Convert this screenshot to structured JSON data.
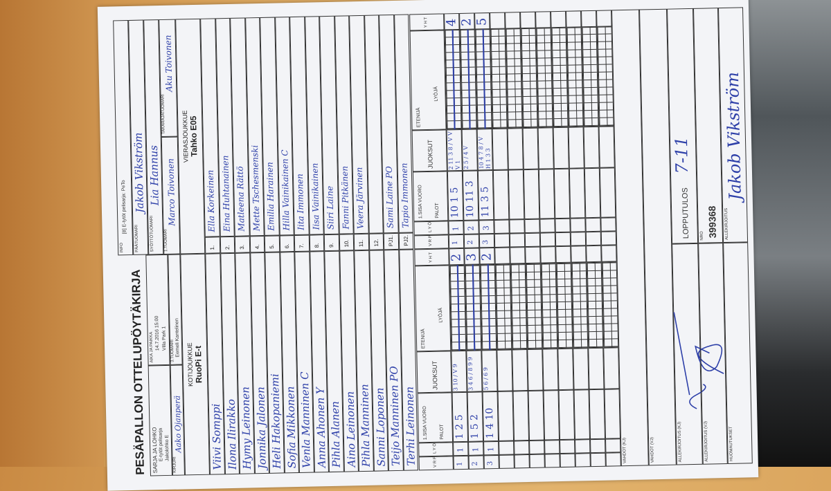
{
  "form": {
    "title": "PESÄPALLON OTTELUPÖYTÄKIRJA",
    "series_label": "SARJA JA LOHKO",
    "series_value": "E-tytöt pelisarja",
    "series_group": "Jakolohko E",
    "time_label": "AIKA JA PAIKKA",
    "time_value": "14.7.2016 15:00",
    "place_value": "Villa Park 1",
    "scorer_label": "KIRJURI",
    "scorer_value": "Aako Ojanperä",
    "third_umpire_label": "3.TUOMARI",
    "third_umpire_value": "Eemeli Kantelinen",
    "info_label": "INFO",
    "info_value": "[8] E-tytöt pelisarja: PeTo",
    "chief_umpire_label": "PÄÄTUOMARI",
    "chief_umpire_value": "Jakob Vikström",
    "pitch_umpire_label": "SYÖTTÖTUOMARI",
    "pitch_umpire_value": "Lia Hannus",
    "first_umpire_label": "1.TUOMARI",
    "first_umpire_value": "Marco Toivonen",
    "back_umpire_label": "TAKARAJATUOMARI",
    "back_umpire_value": "Aku Toivonen"
  },
  "home": {
    "label": "KOTIJOUKKUE",
    "team": "RuoPi E-t",
    "players": [
      "Viivi Somppi",
      "Ilona Ilirakko",
      "Hymy Leinonen",
      "Jonnika Jalonen",
      "Heli Hakopaniemi",
      "Sofia Mikkonen",
      "Venla Manninen  C",
      "Anna Ahonen  Y",
      "Pihla Alanen",
      "Aino Leinonen",
      "Pihla Manninen",
      "Sanni Loponen",
      "Teijo Manninen  PO",
      "Terhi Leinonen"
    ]
  },
  "away": {
    "label": "VIERASJOUKKUE",
    "team": "Tahko E05",
    "numbers": [
      "1.",
      "2.",
      "3.",
      "4.",
      "5.",
      "6.",
      "7.",
      "8.",
      "9.",
      "10.",
      "11.",
      "12.",
      "PJ1.",
      "PJ2."
    ],
    "players": [
      "Ella Korkeinen",
      "Eina Huhtanainen",
      "Matleena Rättö",
      "Mette Tschesmenski",
      "Emilia Harainen",
      "Hilla Vainikainen  C",
      "Iita Immonen",
      "Iisa Vainikainen",
      "Siiri Laine",
      "Fanni Pitkänen",
      "Veera Järvinen",
      "",
      "Sami Laine  PO",
      "Tapio Immonen"
    ]
  },
  "score_headers": {
    "vrp": "V R P",
    "lyo": "L Y Ö",
    "sisa": "1.SISA VUORO",
    "palot": "PALOT",
    "juoksut": "JUOKSUT",
    "etenija": "ETENIJÄ",
    "lyoja": "LYÖJÄ",
    "yht": "Y H T"
  },
  "home_score": [
    {
      "period": "1",
      "lyo": "1",
      "palot": "1 2 5",
      "juoksut": "3 10 / V 9",
      "yht": "2"
    },
    {
      "period": "2",
      "lyo": "1",
      "palot": "1 5 2",
      "juoksut": "3 4 6 / 8 9 9",
      "yht": "3"
    },
    {
      "period": "3",
      "lyo": "1",
      "palot": "1 4 10",
      "juoksut": "5 6 / 6 9",
      "yht": "2"
    }
  ],
  "away_score": [
    {
      "period": "1",
      "lyo": "1",
      "palot": "10 1 5",
      "juoksut": "2 11 3 8 / V V V 1",
      "yht": "4"
    },
    {
      "period": "2",
      "lyo": "2",
      "palot": "10 11 3",
      "juoksut": "2 5 / 4 V",
      "yht": "2"
    },
    {
      "period": "3",
      "lyo": "3",
      "palot": "11 3 5",
      "juoksut": "10 4 7 8 / V H 1 3 3",
      "yht": "5"
    }
  ],
  "footer": {
    "vahdot_kj": "VAHDOT (KJ)",
    "vahdot_vj": "VAHDOT (VJ)",
    "sign_kj": "ALLEKIRJOITUS (KJ)",
    "sign_vj": "ALLEKIRJOITUS (VJ)",
    "notes": "HUOMAUTUKSET",
    "result_label": "LOPPUTULOS",
    "result_value": "7-11",
    "nro_label": "NRO",
    "nro_value": "399368",
    "signature_label": "ALLEKIRJOITUS",
    "signature_value": "Jakob Vikström"
  },
  "colors": {
    "ink": "#2d3fa8",
    "paper": "#f3f4f7",
    "table": "#dba861"
  }
}
